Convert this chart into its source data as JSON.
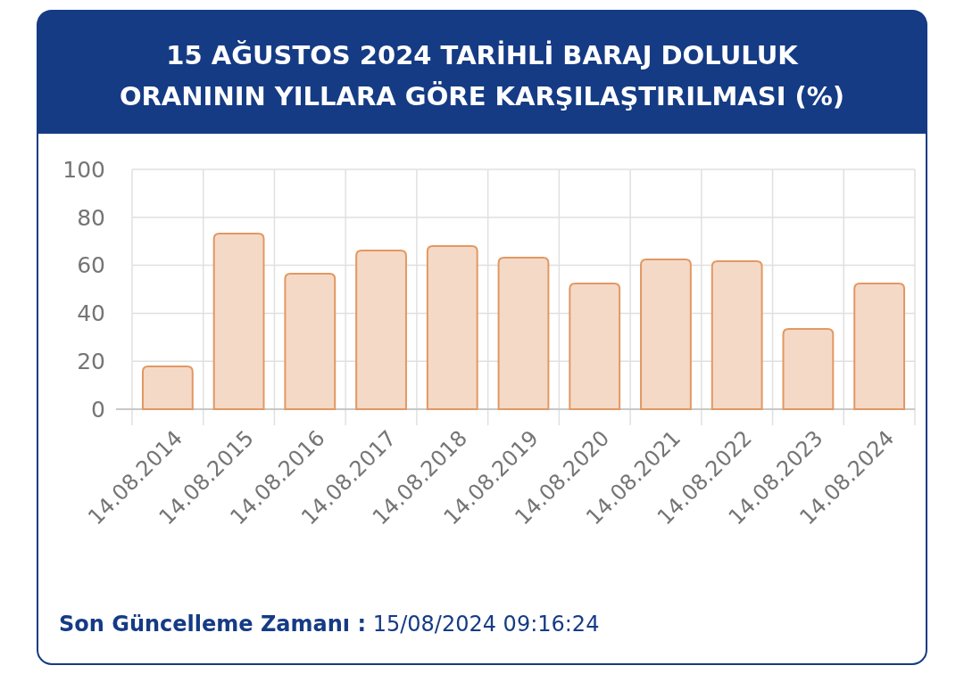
{
  "chart_data": {
    "type": "bar",
    "title": "15 AĞUSTOS 2024 TARİHLİ BARAJ DOLULUK\nORANININ YILLARA GÖRE KARŞILAŞTIRILMASI (%)",
    "categories": [
      "14.08.2014",
      "14.08.2015",
      "14.08.2016",
      "14.08.2017",
      "14.08.2018",
      "14.08.2019",
      "14.08.2020",
      "14.08.2021",
      "14.08.2022",
      "14.08.2023",
      "14.08.2024"
    ],
    "values": [
      17.8,
      73.2,
      56.5,
      66.2,
      68,
      63.2,
      52.4,
      62.5,
      61.7,
      33.5,
      52.4
    ],
    "color": "#f4d9c7",
    "ylim": [
      0,
      100
    ],
    "yticks": [
      0,
      20,
      40,
      60,
      80,
      100
    ],
    "grid": true,
    "annotations": [
      "Son Güncelleme Zamanı :",
      "15/08/2024 09:16:24"
    ]
  }
}
